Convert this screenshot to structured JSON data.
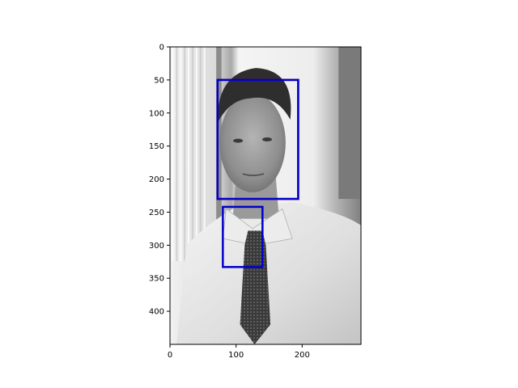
{
  "chart_data": {
    "type": "image",
    "title": "",
    "xlabel": "",
    "ylabel": "",
    "image_size": [
      289,
      450
    ],
    "xlim": [
      0,
      289
    ],
    "ylim": [
      450,
      0
    ],
    "y_inverted": true,
    "xticks": [
      0,
      100,
      200
    ],
    "yticks": [
      0,
      50,
      100,
      150,
      200,
      250,
      300,
      350,
      400
    ],
    "image": {
      "content": "grayscale portrait photo of a man in a white shirt and dark patterned tie",
      "colormap": "gray"
    },
    "boxes": [
      {
        "label": "",
        "x0": 72,
        "y0": 50,
        "x1": 194,
        "y1": 230,
        "color": "#d4002a"
      },
      {
        "label": "",
        "x0": 72,
        "y0": 50,
        "x1": 194,
        "y1": 230,
        "color": "#0000cc"
      },
      {
        "label": "",
        "x0": 80,
        "y0": 242,
        "x1": 140,
        "y1": 333,
        "color": "#0000cc"
      }
    ]
  }
}
